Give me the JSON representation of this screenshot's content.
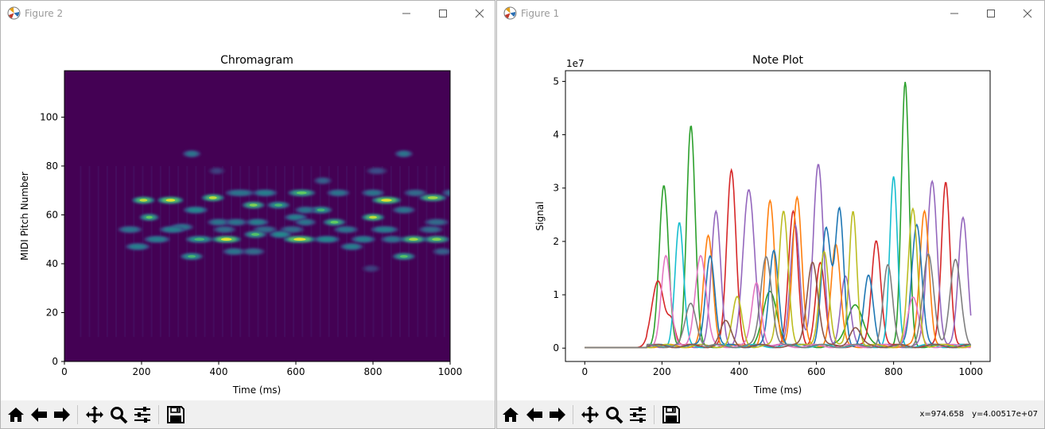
{
  "figure2": {
    "window_title": "Figure 2",
    "icon": "matplotlib-icon",
    "chart_data": {
      "type": "heatmap",
      "title": "Chromagram",
      "xlabel": "Time (ms)",
      "ylabel": "MIDI Pitch Number",
      "xlim": [
        0,
        1000
      ],
      "ylim": [
        0,
        119
      ],
      "xticks": [
        0,
        200,
        400,
        600,
        800,
        1000
      ],
      "yticks": [
        0,
        20,
        40,
        60,
        80,
        100
      ],
      "colormap": "viridis",
      "background": "#440154",
      "spots": [
        {
          "x": 205,
          "y": 66,
          "w": 22,
          "v": 0.9
        },
        {
          "x": 275,
          "y": 66,
          "w": 26,
          "v": 0.95
        },
        {
          "x": 330,
          "y": 85,
          "w": 16,
          "v": 0.5
        },
        {
          "x": 340,
          "y": 62,
          "w": 24,
          "v": 0.6
        },
        {
          "x": 385,
          "y": 67,
          "w": 22,
          "v": 0.9
        },
        {
          "x": 455,
          "y": 69,
          "w": 30,
          "v": 0.5
        },
        {
          "x": 490,
          "y": 64,
          "w": 22,
          "v": 0.8
        },
        {
          "x": 520,
          "y": 69,
          "w": 24,
          "v": 0.55
        },
        {
          "x": 555,
          "y": 64,
          "w": 22,
          "v": 0.65
        },
        {
          "x": 615,
          "y": 69,
          "w": 28,
          "v": 0.75
        },
        {
          "x": 665,
          "y": 62,
          "w": 22,
          "v": 0.65
        },
        {
          "x": 670,
          "y": 74,
          "w": 16,
          "v": 0.4
        },
        {
          "x": 710,
          "y": 69,
          "w": 22,
          "v": 0.5
        },
        {
          "x": 800,
          "y": 69,
          "w": 22,
          "v": 0.5
        },
        {
          "x": 835,
          "y": 66,
          "w": 30,
          "v": 0.95
        },
        {
          "x": 880,
          "y": 85,
          "w": 16,
          "v": 0.5
        },
        {
          "x": 910,
          "y": 69,
          "w": 22,
          "v": 0.45
        },
        {
          "x": 955,
          "y": 67,
          "w": 28,
          "v": 0.85
        },
        {
          "x": 1000,
          "y": 69,
          "w": 14,
          "v": 0.4
        },
        {
          "x": 220,
          "y": 59,
          "w": 18,
          "v": 0.75
        },
        {
          "x": 305,
          "y": 55,
          "w": 22,
          "v": 0.5
        },
        {
          "x": 400,
          "y": 57,
          "w": 22,
          "v": 0.5
        },
        {
          "x": 445,
          "y": 57,
          "w": 22,
          "v": 0.5
        },
        {
          "x": 500,
          "y": 57,
          "w": 22,
          "v": 0.55
        },
        {
          "x": 600,
          "y": 59,
          "w": 22,
          "v": 0.55
        },
        {
          "x": 625,
          "y": 62,
          "w": 20,
          "v": 0.5
        },
        {
          "x": 625,
          "y": 57,
          "w": 20,
          "v": 0.5
        },
        {
          "x": 700,
          "y": 57,
          "w": 22,
          "v": 0.75
        },
        {
          "x": 800,
          "y": 59,
          "w": 22,
          "v": 0.9
        },
        {
          "x": 880,
          "y": 62,
          "w": 22,
          "v": 0.5
        },
        {
          "x": 965,
          "y": 57,
          "w": 24,
          "v": 0.45
        },
        {
          "x": 170,
          "y": 54,
          "w": 24,
          "v": 0.5
        },
        {
          "x": 280,
          "y": 54,
          "w": 26,
          "v": 0.55
        },
        {
          "x": 415,
          "y": 54,
          "w": 22,
          "v": 0.45
        },
        {
          "x": 520,
          "y": 54,
          "w": 24,
          "v": 0.45
        },
        {
          "x": 590,
          "y": 54,
          "w": 24,
          "v": 0.45
        },
        {
          "x": 730,
          "y": 54,
          "w": 24,
          "v": 0.5
        },
        {
          "x": 830,
          "y": 54,
          "w": 28,
          "v": 0.55
        },
        {
          "x": 950,
          "y": 54,
          "w": 24,
          "v": 0.45
        },
        {
          "x": 240,
          "y": 50,
          "w": 26,
          "v": 0.55
        },
        {
          "x": 350,
          "y": 50,
          "w": 28,
          "v": 0.65
        },
        {
          "x": 420,
          "y": 50,
          "w": 30,
          "v": 0.95
        },
        {
          "x": 495,
          "y": 52,
          "w": 22,
          "v": 0.7
        },
        {
          "x": 560,
          "y": 52,
          "w": 22,
          "v": 0.6
        },
        {
          "x": 610,
          "y": 50,
          "w": 34,
          "v": 0.95
        },
        {
          "x": 680,
          "y": 50,
          "w": 26,
          "v": 0.6
        },
        {
          "x": 775,
          "y": 50,
          "w": 24,
          "v": 0.55
        },
        {
          "x": 850,
          "y": 50,
          "w": 22,
          "v": 0.5
        },
        {
          "x": 905,
          "y": 50,
          "w": 26,
          "v": 0.85
        },
        {
          "x": 965,
          "y": 50,
          "w": 26,
          "v": 0.8
        },
        {
          "x": 190,
          "y": 47,
          "w": 24,
          "v": 0.55
        },
        {
          "x": 440,
          "y": 45,
          "w": 22,
          "v": 0.5
        },
        {
          "x": 490,
          "y": 45,
          "w": 22,
          "v": 0.45
        },
        {
          "x": 745,
          "y": 47,
          "w": 22,
          "v": 0.55
        },
        {
          "x": 980,
          "y": 45,
          "w": 18,
          "v": 0.4
        },
        {
          "x": 330,
          "y": 43,
          "w": 22,
          "v": 0.65
        },
        {
          "x": 880,
          "y": 43,
          "w": 22,
          "v": 0.7
        },
        {
          "x": 795,
          "y": 38,
          "w": 16,
          "v": 0.25
        },
        {
          "x": 810,
          "y": 78,
          "w": 20,
          "v": 0.3
        },
        {
          "x": 395,
          "y": 78,
          "w": 14,
          "v": 0.25
        }
      ]
    },
    "toolbar": [
      "home-icon",
      "back-arrow-icon",
      "forward-arrow-icon",
      "pan-icon",
      "zoom-icon",
      "configure-subplots-icon",
      "save-icon"
    ]
  },
  "figure1": {
    "window_title": "Figure 1",
    "icon": "matplotlib-icon",
    "chart_data": {
      "type": "line",
      "title": "Note Plot",
      "xlabel": "Time (ms)",
      "ylabel": "Signal",
      "y_offset_label": "1e7",
      "xlim": [
        -50,
        1050
      ],
      "ylim": [
        -0.25,
        5.2
      ],
      "xticks": [
        0,
        200,
        400,
        600,
        800,
        1000
      ],
      "yticks": [
        0,
        1,
        2,
        3,
        4,
        5
      ],
      "series": [
        {
          "color": "#2ca02c",
          "peaks": [
            [
              205,
              2.98,
              12
            ],
            [
              275,
              4.12,
              11
            ],
            [
              480,
              1.0,
              18
            ],
            [
              700,
              0.8,
              20
            ],
            [
              830,
              4.92,
              10
            ]
          ]
        },
        {
          "color": "#d62728",
          "peaks": [
            [
              190,
              1.2,
              16
            ],
            [
              225,
              0.45,
              10
            ],
            [
              380,
              3.3,
              12
            ],
            [
              540,
              2.5,
              12
            ],
            [
              610,
              1.55,
              12
            ],
            [
              755,
              2.0,
              12
            ],
            [
              935,
              3.1,
              11
            ]
          ]
        },
        {
          "color": "#9467bd",
          "peaks": [
            [
              340,
              2.5,
              12
            ],
            [
              425,
              2.9,
              15
            ],
            [
              545,
              2.3,
              12
            ],
            [
              605,
              3.38,
              13
            ],
            [
              675,
              1.3,
              12
            ],
            [
              900,
              3.1,
              13
            ],
            [
              980,
              2.4,
              12
            ]
          ]
        },
        {
          "color": "#ff7f0e",
          "peaks": [
            [
              320,
              2.05,
              12
            ],
            [
              480,
              2.7,
              12
            ],
            [
              550,
              2.8,
              12
            ],
            [
              650,
              1.9,
              12
            ],
            [
              880,
              2.55,
              12
            ]
          ]
        },
        {
          "color": "#1f77b4",
          "peaks": [
            [
              325,
              1.72,
              12
            ],
            [
              490,
              1.8,
              12
            ],
            [
              625,
              2.2,
              12
            ],
            [
              660,
              2.55,
              11
            ],
            [
              735,
              1.3,
              12
            ],
            [
              860,
              2.3,
              13
            ]
          ]
        },
        {
          "color": "#17becf",
          "peaks": [
            [
              245,
              2.3,
              11
            ],
            [
              800,
              3.15,
              10
            ]
          ]
        },
        {
          "color": "#e377c2",
          "peaks": [
            [
              210,
              1.7,
              12
            ],
            [
              300,
              1.7,
              14
            ],
            [
              445,
              1.2,
              12
            ],
            [
              850,
              0.9,
              14
            ]
          ]
        },
        {
          "color": "#bcbd22",
          "peaks": [
            [
              395,
              0.9,
              12
            ],
            [
              515,
              2.55,
              12
            ],
            [
              620,
              1.8,
              12
            ],
            [
              695,
              2.55,
              10
            ],
            [
              850,
              2.55,
              12
            ]
          ]
        },
        {
          "color": "#8c564b",
          "peaks": [
            [
              365,
              0.45,
              14
            ],
            [
              590,
              1.6,
              14
            ],
            [
              700,
              0.35,
              14
            ]
          ]
        },
        {
          "color": "#7f7f7f",
          "peaks": [
            [
              275,
              0.8,
              14
            ],
            [
              470,
              1.7,
              14
            ],
            [
              785,
              1.5,
              12
            ],
            [
              890,
              1.7,
              14
            ],
            [
              960,
              1.6,
              14
            ]
          ]
        }
      ]
    },
    "toolbar": [
      "home-icon",
      "back-arrow-icon",
      "forward-arrow-icon",
      "pan-icon",
      "zoom-icon",
      "configure-subplots-icon",
      "save-icon"
    ],
    "coords": {
      "x": "x=974.658",
      "y": "y=4.00517e+07"
    }
  }
}
